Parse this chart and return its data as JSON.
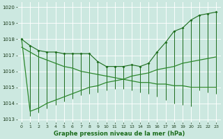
{
  "xlabel": "Graphe pression niveau de la mer (hPa)",
  "bg_color": "#cce8e0",
  "grid_color": "#b0d8d0",
  "dark_green": "#1a6b1a",
  "med_green": "#2d882d",
  "ylim": [
    1012.8,
    1020.3
  ],
  "yticks": [
    1013,
    1014,
    1015,
    1016,
    1017,
    1018,
    1019,
    1020
  ],
  "hours": [
    0,
    1,
    2,
    3,
    4,
    5,
    6,
    7,
    8,
    9,
    10,
    11,
    12,
    13,
    14,
    15,
    16,
    17,
    18,
    19,
    20,
    21,
    22,
    23
  ],
  "main_line": [
    1018.0,
    1017.6,
    1017.3,
    1017.2,
    1017.2,
    1017.1,
    1017.1,
    1017.1,
    1017.1,
    1016.6,
    1016.3,
    1016.3,
    1016.3,
    1016.4,
    1016.3,
    1016.5,
    1017.2,
    1017.8,
    1018.5,
    1018.7,
    1019.2,
    1019.5,
    1019.6,
    1019.7
  ],
  "spike_top": [
    1018.0,
    1017.6,
    1017.3,
    1017.2,
    1017.2,
    1017.1,
    1017.1,
    1017.1,
    1017.1,
    1016.6,
    1016.3,
    1016.3,
    1016.3,
    1016.4,
    1016.3,
    1016.5,
    1017.2,
    1017.8,
    1018.5,
    1018.7,
    1019.2,
    1019.5,
    1019.6,
    1019.7
  ],
  "spike_bot": [
    1018.0,
    1013.2,
    1013.4,
    1013.7,
    1013.9,
    1014.1,
    1014.3,
    1014.5,
    1014.6,
    1014.7,
    1014.8,
    1014.9,
    1014.9,
    1014.8,
    1014.7,
    1014.6,
    1014.4,
    1014.2,
    1014.0,
    1013.9,
    1013.8,
    1014.8,
    1014.7,
    1014.6
  ],
  "trend_upper": [
    1017.5,
    1017.2,
    1016.9,
    1016.7,
    1016.5,
    1016.3,
    1016.2,
    1016.0,
    1015.9,
    1015.8,
    1015.7,
    1015.6,
    1015.5,
    1015.4,
    1015.3,
    1015.3,
    1015.2,
    1015.2,
    1015.1,
    1015.1,
    1015.0,
    1015.0,
    1015.0,
    1015.0
  ],
  "trend_lower": [
    1018.0,
    1013.5,
    1013.7,
    1014.0,
    1014.2,
    1014.4,
    1014.6,
    1014.8,
    1015.0,
    1015.1,
    1015.3,
    1015.4,
    1015.5,
    1015.7,
    1015.8,
    1015.9,
    1016.1,
    1016.2,
    1016.3,
    1016.5,
    1016.6,
    1016.7,
    1016.8,
    1016.9
  ]
}
